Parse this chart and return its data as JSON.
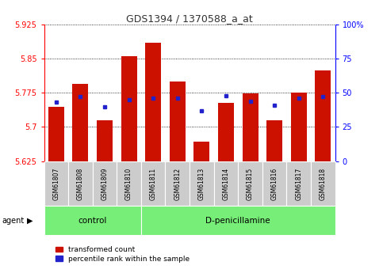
{
  "title": "GDS1394 / 1370588_a_at",
  "samples": [
    "GSM61807",
    "GSM61808",
    "GSM61809",
    "GSM61810",
    "GSM61811",
    "GSM61812",
    "GSM61813",
    "GSM61814",
    "GSM61815",
    "GSM61816",
    "GSM61817",
    "GSM61818"
  ],
  "transformed_count": [
    5.745,
    5.795,
    5.715,
    5.855,
    5.885,
    5.8,
    5.667,
    5.753,
    5.773,
    5.715,
    5.775,
    5.825
  ],
  "percentile_rank": [
    43,
    47,
    40,
    45,
    46,
    46,
    37,
    48,
    44,
    41,
    46,
    47
  ],
  "y_min": 5.625,
  "y_max": 5.925,
  "y_ticks": [
    5.625,
    5.7,
    5.775,
    5.85,
    5.925
  ],
  "y_tick_labels": [
    "5.625",
    "5.7",
    "5.775",
    "5.85",
    "5.925"
  ],
  "right_y_ticks": [
    0,
    25,
    50,
    75,
    100
  ],
  "right_y_tick_labels": [
    "0",
    "25",
    "50",
    "75",
    "100%"
  ],
  "bar_color": "#cc1100",
  "dot_color": "#2222cc",
  "groups": [
    {
      "label": "control",
      "start": 0,
      "end": 4
    },
    {
      "label": "D-penicillamine",
      "start": 4,
      "end": 12
    }
  ],
  "group_color": "#77ee77",
  "agent_label": "agent",
  "legend_items": [
    {
      "color": "#cc1100",
      "label": "transformed count"
    },
    {
      "color": "#2222cc",
      "label": "percentile rank within the sample"
    }
  ],
  "bar_width": 0.65,
  "background_color": "#ffffff",
  "tick_label_bg": "#cccccc",
  "title_color": "#333333",
  "title_fontsize": 9
}
